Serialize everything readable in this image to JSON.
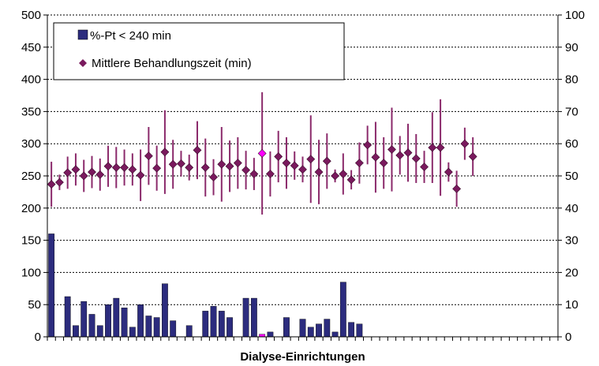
{
  "chart_data": {
    "type": "bar+line",
    "xlabel": "Dialyse-Einrichtungen",
    "ylabel_left": "",
    "ylabel_right": "",
    "ylim_left": [
      0,
      500
    ],
    "ylim_right": [
      0,
      100
    ],
    "yticks_left": [
      0,
      50,
      100,
      150,
      200,
      250,
      300,
      350,
      400,
      450,
      500
    ],
    "yticks_right": [
      0,
      10,
      20,
      30,
      40,
      50,
      60,
      70,
      80,
      90,
      100
    ],
    "grid": "horizontal dotted",
    "legend_position": "top-left",
    "n_facilities": 63,
    "highlight_index": 26,
    "colors": {
      "bar": "#2c2c7e",
      "bar_highlight": "#ff00ff",
      "marker": "#7a1a5e",
      "marker_highlight": "#ff00ff",
      "errorbar": "#8b2a6b"
    },
    "series": [
      {
        "name": "%-Pt < 240 min",
        "type": "bar",
        "axis": "right",
        "values": [
          32,
          0,
          12.5,
          3.5,
          11,
          7,
          3.5,
          10,
          12,
          9,
          3,
          10,
          6.5,
          6,
          16.5,
          5,
          0,
          3.5,
          0,
          8,
          9.5,
          8,
          6,
          0,
          12,
          12,
          0.8,
          1.5,
          0,
          6,
          0,
          5.5,
          3,
          4,
          5.5,
          1.5,
          17,
          4.5,
          4,
          0,
          0,
          0,
          0,
          0,
          0,
          0,
          0,
          0,
          0,
          0,
          0,
          0,
          0,
          0,
          0,
          0,
          0,
          0,
          0,
          0,
          0,
          0,
          0
        ]
      },
      {
        "name": "Mittlere Behandlungszeit (min)",
        "type": "scatter",
        "axis": "left",
        "values": [
          237,
          240,
          255,
          260,
          250,
          256,
          252,
          265,
          263,
          263,
          260,
          251,
          281,
          262,
          287,
          268,
          269,
          263,
          290,
          263,
          248,
          268,
          265,
          270,
          259,
          253,
          285,
          253,
          280,
          270,
          266,
          260,
          276,
          256,
          273,
          250,
          253,
          244,
          270,
          298,
          279,
          270,
          291,
          282,
          286,
          277,
          264,
          294,
          294,
          256,
          230,
          300,
          280,
          0,
          0,
          0,
          0,
          0,
          0,
          0,
          0,
          0,
          0
        ],
        "errors": [
          35,
          12,
          25,
          25,
          25,
          25,
          25,
          32,
          32,
          28,
          25,
          40,
          45,
          35,
          65,
          38,
          20,
          20,
          45,
          45,
          28,
          58,
          40,
          40,
          30,
          25,
          95,
          35,
          40,
          40,
          22,
          20,
          68,
          50,
          43,
          10,
          32,
          15,
          32,
          30,
          55,
          40,
          65,
          30,
          45,
          38,
          25,
          55,
          75,
          15,
          28,
          25,
          30,
          0,
          0,
          0,
          0,
          0,
          0,
          0,
          0,
          0,
          0
        ]
      }
    ]
  }
}
